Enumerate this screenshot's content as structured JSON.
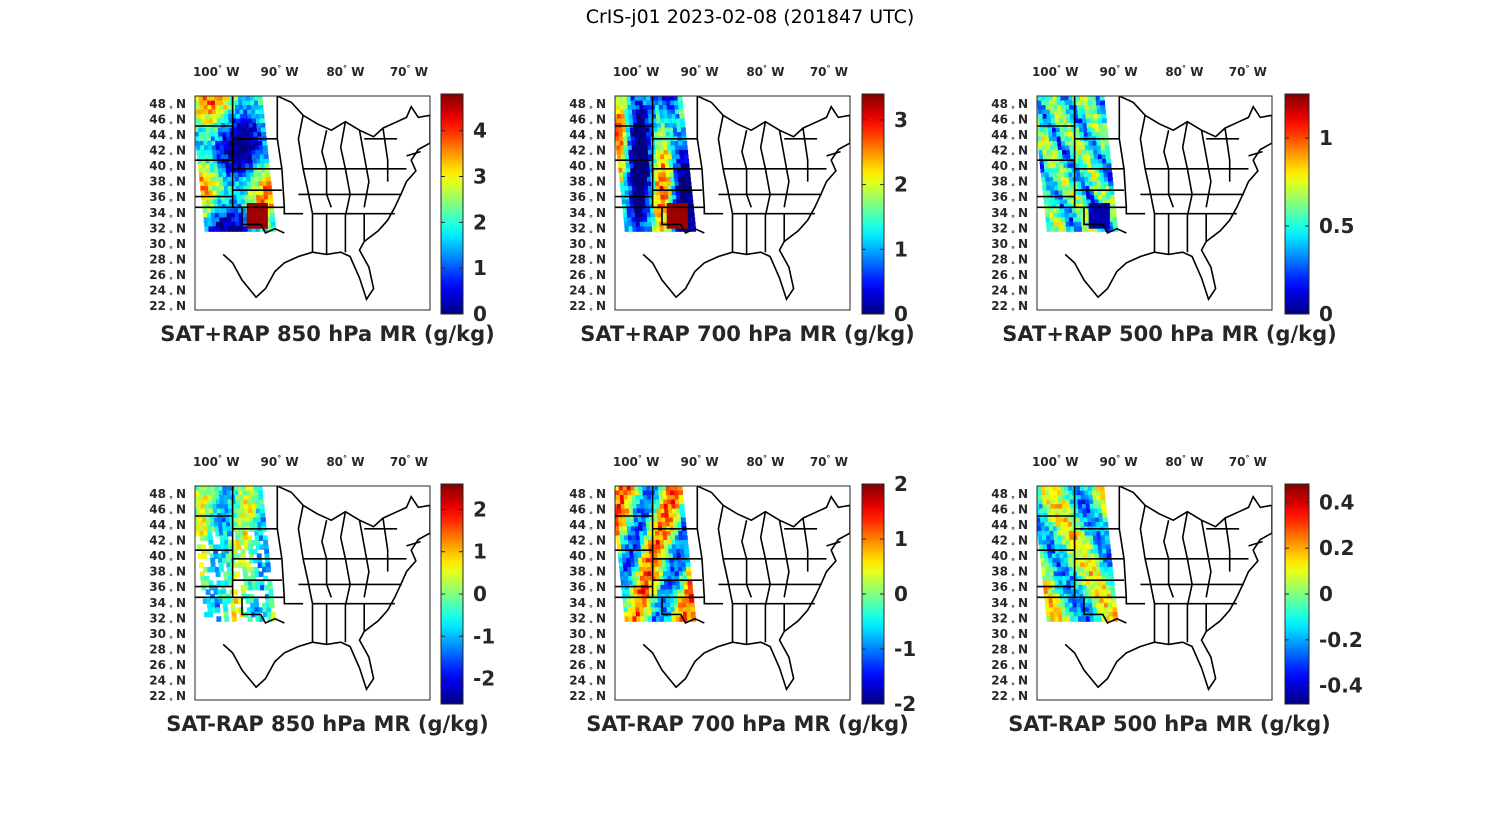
{
  "figure": {
    "title": "CrIS-j01 2023-02-08 (201847 UTC)"
  },
  "map": {
    "lon_ticks": [
      "100",
      "90",
      "80",
      "70"
    ],
    "lon_hemi": "W",
    "lat_ticks": [
      "48",
      "46",
      "44",
      "42",
      "40",
      "38",
      "36",
      "34",
      "32",
      "30",
      "28",
      "26",
      "24",
      "22"
    ],
    "lat_hemi": "N",
    "degree_symbol": "°",
    "lon_range": [
      -106,
      -68
    ],
    "lat_range": [
      22,
      50
    ]
  },
  "colormap": "jet",
  "panels": [
    {
      "title": "SAT+RAP 850 hPa MR (g/kg)",
      "cbar_ticks": [
        "4",
        "3",
        "2",
        "1",
        "0"
      ],
      "cbar_values": [
        4,
        3,
        2,
        1,
        0
      ],
      "clim": [
        0,
        4.8
      ],
      "type": "field"
    },
    {
      "title": "SAT+RAP 700 hPa MR (g/kg)",
      "cbar_ticks": [
        "3",
        "2",
        "1",
        "0"
      ],
      "cbar_values": [
        3,
        2,
        1,
        0
      ],
      "clim": [
        0,
        3.4
      ],
      "type": "field"
    },
    {
      "title": "SAT+RAP 500 hPa MR (g/kg)",
      "cbar_ticks": [
        "1",
        "0.5",
        "0"
      ],
      "cbar_values": [
        1,
        0.5,
        0
      ],
      "clim": [
        0,
        1.25
      ],
      "type": "field"
    },
    {
      "title": "SAT-RAP 850 hPa MR (g/kg)",
      "cbar_ticks": [
        "2",
        "1",
        "0",
        "-1",
        "-2"
      ],
      "cbar_values": [
        2,
        1,
        0,
        -1,
        -2
      ],
      "clim": [
        -2.6,
        2.6
      ],
      "type": "diff"
    },
    {
      "title": "SAT-RAP 700 hPa MR (g/kg)",
      "cbar_ticks": [
        "2",
        "1",
        "0",
        "-1",
        "-2"
      ],
      "cbar_values": [
        2,
        1,
        0,
        -1,
        -2
      ],
      "clim": [
        -2,
        2
      ],
      "type": "diff"
    },
    {
      "title": "SAT-RAP 500 hPa MR (g/kg)",
      "cbar_ticks": [
        "0.4",
        "0.2",
        "0",
        "-0.2",
        "-0.4"
      ],
      "cbar_values": [
        0.4,
        0.2,
        0,
        -0.2,
        -0.4
      ],
      "clim": [
        -0.48,
        0.48
      ],
      "type": "diff"
    }
  ]
}
